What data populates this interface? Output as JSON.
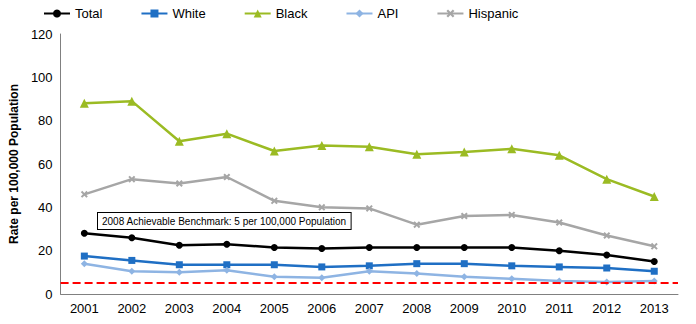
{
  "chart_data": {
    "type": "line",
    "y_label": "Rate per 100,000 Population",
    "categories": [
      "2001",
      "2002",
      "2003",
      "2004",
      "2005",
      "2006",
      "2007",
      "2008",
      "2009",
      "2010",
      "2011",
      "2012",
      "2013"
    ],
    "series": [
      {
        "name": "Total",
        "color": "#000000",
        "marker": "circle",
        "values": [
          28,
          26,
          22.5,
          23,
          21.5,
          21,
          21.5,
          21.5,
          21.5,
          21.5,
          20,
          18,
          15
        ]
      },
      {
        "name": "White",
        "color": "#1f6fc4",
        "marker": "square",
        "values": [
          17.5,
          15.5,
          13.5,
          13.5,
          13.5,
          12.5,
          13,
          14,
          14,
          13,
          12.5,
          12,
          10.5
        ]
      },
      {
        "name": "Black",
        "color": "#9bbb23",
        "marker": "triangle",
        "values": [
          88,
          89,
          70.5,
          74,
          66,
          68.5,
          68,
          64.5,
          65.5,
          67,
          64,
          53,
          45
        ]
      },
      {
        "name": "API",
        "color": "#8eb4e3",
        "marker": "diamond",
        "values": [
          14,
          10.5,
          10,
          11,
          8,
          7.5,
          10.5,
          9.5,
          8,
          7,
          6,
          5.5,
          6
        ]
      },
      {
        "name": "Hispanic",
        "color": "#a6a6a6",
        "marker": "x",
        "values": [
          46,
          53,
          51,
          54,
          43,
          40,
          39.5,
          32,
          36,
          36.5,
          33,
          27,
          22
        ]
      }
    ],
    "annotations": [
      {
        "text": "2008 Achievable Benchmark: 5 per 100,000 Population",
        "y": 5,
        "color": "#ff0000",
        "line_style": "dashed"
      }
    ],
    "ylim": [
      0,
      120
    ],
    "yticks": [
      0,
      20,
      40,
      60,
      80,
      100,
      120
    ],
    "grid": false,
    "legend": "top"
  }
}
